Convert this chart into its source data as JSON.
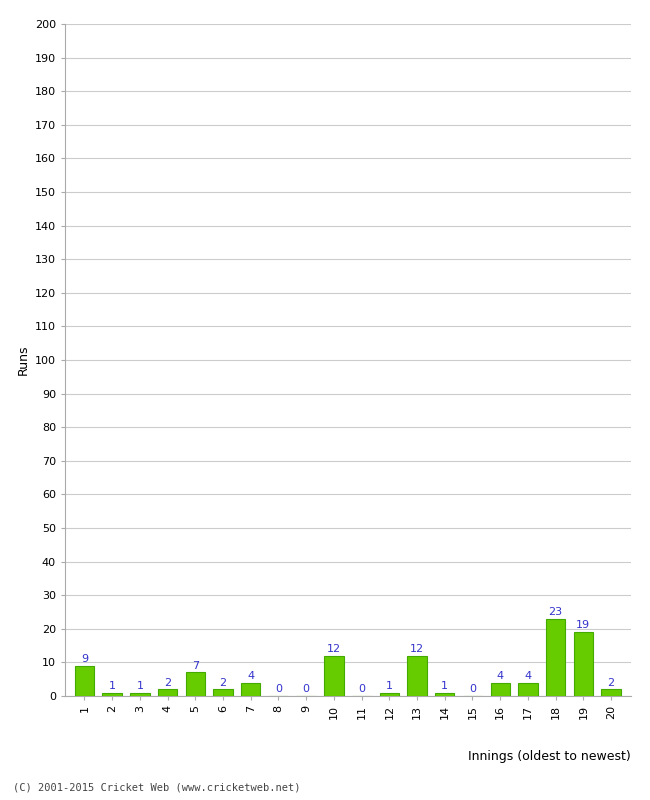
{
  "innings": [
    1,
    2,
    3,
    4,
    5,
    6,
    7,
    8,
    9,
    10,
    11,
    12,
    13,
    14,
    15,
    16,
    17,
    18,
    19,
    20
  ],
  "runs": [
    9,
    1,
    1,
    2,
    7,
    2,
    4,
    0,
    0,
    12,
    0,
    1,
    12,
    1,
    0,
    4,
    4,
    23,
    19,
    2
  ],
  "bar_color": "#66cc00",
  "bar_edge_color": "#44aa00",
  "label_color": "#3333cc",
  "ylabel": "Runs",
  "xlabel": "Innings (oldest to newest)",
  "ylim": [
    0,
    200
  ],
  "yticks": [
    0,
    10,
    20,
    30,
    40,
    50,
    60,
    70,
    80,
    90,
    100,
    110,
    120,
    130,
    140,
    150,
    160,
    170,
    180,
    190,
    200
  ],
  "footer": "(C) 2001-2015 Cricket Web (www.cricketweb.net)",
  "background_color": "#ffffff",
  "grid_color": "#cccccc",
  "fig_width": 6.5,
  "fig_height": 8.0,
  "dpi": 100
}
